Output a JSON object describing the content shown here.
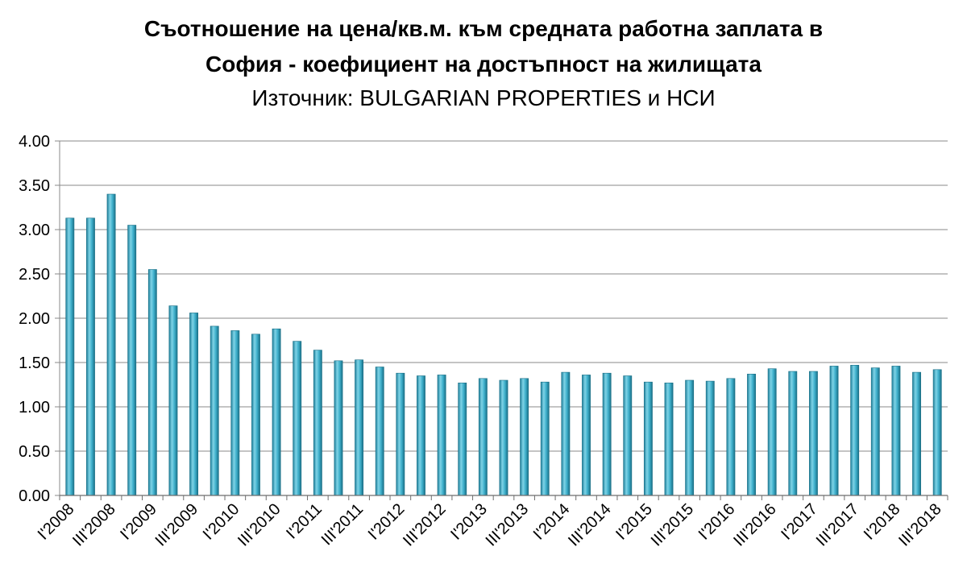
{
  "chart_data": {
    "type": "bar",
    "title_lines": [
      "Съотношение на цена/кв.м. към средната работна заплата в",
      "София - коефициент на достъпност на жилищата"
    ],
    "subtitle": "Източник: BULGARIAN PROPERTIES и НСИ",
    "ylim": [
      0,
      4
    ],
    "y_ticks": [
      "0.00",
      "0.50",
      "1.00",
      "1.50",
      "2.00",
      "2.50",
      "3.00",
      "3.50",
      "4.00"
    ],
    "grid": true,
    "x_tick_labels": [
      "I'2008",
      "III'2008",
      "I'2009",
      "III'2009",
      "I'2010",
      "III'2010",
      "I'2011",
      "III'2011",
      "I'2012",
      "III'2012",
      "I'2013",
      "III'2013",
      "I'2014",
      "III'2014",
      "I'2015",
      "III'2015",
      "I'2016",
      "III'2016",
      "I'2017",
      "III'2017",
      "I'2018",
      "III'2018"
    ],
    "values": [
      3.13,
      3.13,
      3.4,
      3.05,
      2.55,
      2.14,
      2.06,
      1.91,
      1.86,
      1.82,
      1.88,
      1.74,
      1.64,
      1.52,
      1.53,
      1.45,
      1.38,
      1.35,
      1.36,
      1.27,
      1.32,
      1.3,
      1.32,
      1.28,
      1.39,
      1.36,
      1.38,
      1.35,
      1.28,
      1.27,
      1.3,
      1.29,
      1.32,
      1.37,
      1.43,
      1.4,
      1.4,
      1.46,
      1.47,
      1.44,
      1.46,
      1.39,
      1.42
    ],
    "bar_color": "#2b9ab8",
    "bar_highlight": "#7fd3e6",
    "bar_edge": "#1a6f86"
  }
}
